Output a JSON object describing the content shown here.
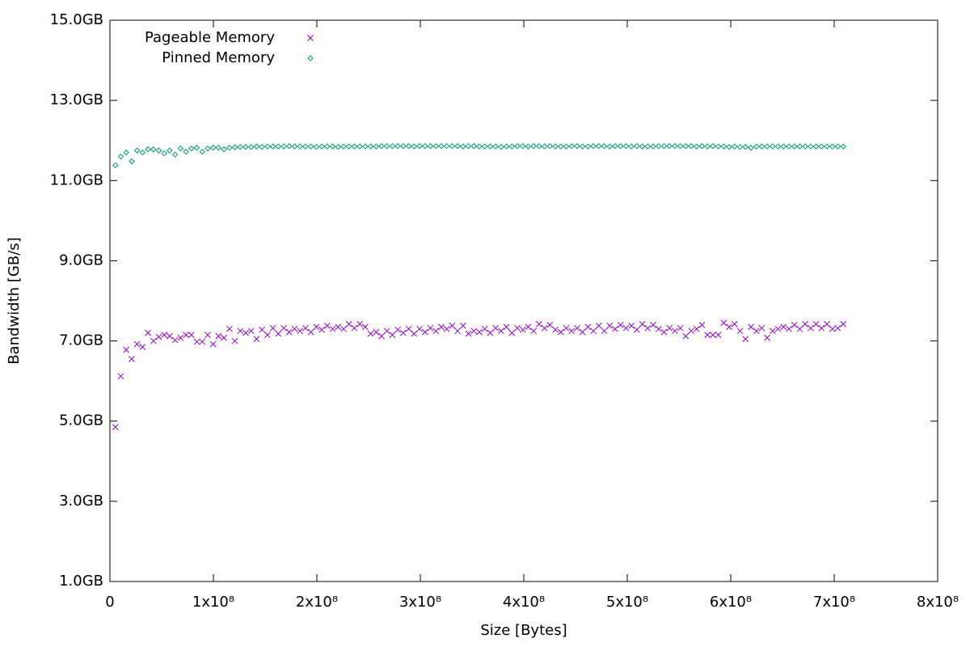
{
  "chart_data": {
    "type": "scatter",
    "xlabel": "Size [Bytes]",
    "ylabel": "Bandwidth [GB/s]",
    "xlim": [
      0,
      800000000
    ],
    "ylim": [
      1,
      15
    ],
    "xticks": [
      0,
      {
        "value": 100000000,
        "label": "1x10⁸"
      },
      {
        "value": 200000000,
        "label": "2x10⁸"
      },
      {
        "value": 300000000,
        "label": "3x10⁸"
      },
      {
        "value": 400000000,
        "label": "4x10⁸"
      },
      {
        "value": 500000000,
        "label": "5x10⁸"
      },
      {
        "value": 600000000,
        "label": "6x10⁸"
      },
      {
        "value": 700000000,
        "label": "7x10⁸"
      },
      {
        "value": 800000000,
        "label": "8x10⁸"
      }
    ],
    "yticks": [
      {
        "value": 1,
        "label": "1.0GB"
      },
      {
        "value": 3,
        "label": "3.0GB"
      },
      {
        "value": 5,
        "label": "5.0GB"
      },
      {
        "value": 7,
        "label": "7.0GB"
      },
      {
        "value": 9,
        "label": "9.0GB"
      },
      {
        "value": 11,
        "label": "11.0GB"
      },
      {
        "value": 13,
        "label": "13.0GB"
      },
      {
        "value": 15,
        "label": "15.0GB"
      }
    ],
    "legend": "top-left",
    "x": [
      5250000,
      10500000,
      15750000,
      21000000,
      26250000,
      31500000,
      36750000,
      42000000,
      47250000,
      52500000,
      57750000,
      63000000,
      68250000,
      73500000,
      78750000,
      84000000,
      89250000,
      94500000,
      99750000,
      105000000,
      110250000,
      115500000,
      120750000,
      126000000,
      131250000,
      136500000,
      141750000,
      147000000,
      152250000,
      157500000,
      162750000,
      168000000,
      173250000,
      178500000,
      183750000,
      189000000,
      194250000,
      199500000,
      204750000,
      210000000,
      215250000,
      220500000,
      225750000,
      231000000,
      236250000,
      241500000,
      246750000,
      252000000,
      257250000,
      262500000,
      267750000,
      273000000,
      278250000,
      283500000,
      288750000,
      294000000,
      299250000,
      304500000,
      309750000,
      315000000,
      320250000,
      325500000,
      330750000,
      336000000,
      341250000,
      346500000,
      351750000,
      357000000,
      362250000,
      367500000,
      372750000,
      378000000,
      383250000,
      388500000,
      393750000,
      399000000,
      404250000,
      409500000,
      414750000,
      420000000,
      425250000,
      430500000,
      435750000,
      441000000,
      446250000,
      451500000,
      456750000,
      462000000,
      467250000,
      472500000,
      477750000,
      483000000,
      488250000,
      493500000,
      498750000,
      504000000,
      509250000,
      514500000,
      519750000,
      525000000,
      530250000,
      535500000,
      540750000,
      546000000,
      551250000,
      556500000,
      561750000,
      567000000,
      572250000,
      577500000,
      582750000,
      588000000,
      593250000,
      598500000,
      603750000,
      609000000,
      614250000,
      619500000,
      624750000,
      630000000,
      635250000,
      640500000,
      645750000,
      651000000,
      656250000,
      661500000,
      666750000,
      672000000,
      677250000,
      682500000,
      687750000,
      693000000,
      698250000,
      703500000,
      708750000
    ],
    "series": [
      {
        "name": "Pageable Memory",
        "color": "#9400d3",
        "marker": "x",
        "values": [
          4.85,
          6.12,
          6.78,
          6.55,
          6.92,
          6.85,
          7.2,
          7.0,
          7.1,
          7.15,
          7.12,
          7.02,
          7.08,
          7.15,
          7.15,
          6.98,
          6.98,
          7.15,
          6.92,
          7.12,
          7.08,
          7.3,
          7.0,
          7.25,
          7.2,
          7.25,
          7.05,
          7.28,
          7.15,
          7.32,
          7.18,
          7.32,
          7.22,
          7.3,
          7.25,
          7.32,
          7.22,
          7.35,
          7.28,
          7.38,
          7.3,
          7.35,
          7.3,
          7.42,
          7.32,
          7.42,
          7.35,
          7.18,
          7.22,
          7.12,
          7.25,
          7.15,
          7.28,
          7.2,
          7.3,
          7.18,
          7.3,
          7.22,
          7.32,
          7.25,
          7.35,
          7.3,
          7.38,
          7.25,
          7.38,
          7.18,
          7.25,
          7.22,
          7.3,
          7.2,
          7.32,
          7.25,
          7.35,
          7.2,
          7.32,
          7.28,
          7.35,
          7.25,
          7.42,
          7.32,
          7.4,
          7.28,
          7.22,
          7.32,
          7.25,
          7.32,
          7.22,
          7.35,
          7.25,
          7.38,
          7.25,
          7.38,
          7.3,
          7.4,
          7.32,
          7.38,
          7.28,
          7.42,
          7.32,
          7.4,
          7.3,
          7.22,
          7.32,
          7.25,
          7.32,
          7.12,
          7.25,
          7.3,
          7.4,
          7.15,
          7.15,
          7.15,
          7.45,
          7.35,
          7.42,
          7.25,
          7.05,
          7.35,
          7.25,
          7.32,
          7.08,
          7.25,
          7.3,
          7.35,
          7.3,
          7.4,
          7.3,
          7.42,
          7.32,
          7.42,
          7.32,
          7.42,
          7.3,
          7.32,
          7.42
        ]
      },
      {
        "name": "Pinned Memory",
        "color": "#009e73",
        "marker": "diamond",
        "values": [
          11.38,
          11.6,
          11.7,
          11.48,
          11.75,
          11.7,
          11.78,
          11.78,
          11.75,
          11.68,
          11.75,
          11.65,
          11.8,
          11.72,
          11.8,
          11.82,
          11.72,
          11.8,
          11.82,
          11.82,
          11.78,
          11.82,
          11.83,
          11.84,
          11.84,
          11.84,
          11.85,
          11.84,
          11.85,
          11.85,
          11.85,
          11.85,
          11.86,
          11.85,
          11.85,
          11.85,
          11.85,
          11.84,
          11.85,
          11.85,
          11.85,
          11.84,
          11.85,
          11.85,
          11.85,
          11.85,
          11.85,
          11.85,
          11.85,
          11.86,
          11.86,
          11.86,
          11.86,
          11.86,
          11.86,
          11.85,
          11.86,
          11.86,
          11.86,
          11.86,
          11.86,
          11.86,
          11.86,
          11.86,
          11.85,
          11.86,
          11.86,
          11.85,
          11.85,
          11.85,
          11.85,
          11.84,
          11.85,
          11.85,
          11.86,
          11.86,
          11.85,
          11.86,
          11.86,
          11.85,
          11.86,
          11.85,
          11.85,
          11.85,
          11.86,
          11.86,
          11.85,
          11.85,
          11.86,
          11.86,
          11.86,
          11.85,
          11.86,
          11.86,
          11.86,
          11.85,
          11.86,
          11.85,
          11.85,
          11.85,
          11.86,
          11.86,
          11.86,
          11.86,
          11.86,
          11.86,
          11.86,
          11.85,
          11.86,
          11.85,
          11.86,
          11.85,
          11.85,
          11.84,
          11.85,
          11.84,
          11.84,
          11.82,
          11.85,
          11.85,
          11.85,
          11.85,
          11.85,
          11.85,
          11.85,
          11.85,
          11.85,
          11.85,
          11.85,
          11.85,
          11.85,
          11.85,
          11.85,
          11.85,
          11.85
        ]
      }
    ]
  }
}
